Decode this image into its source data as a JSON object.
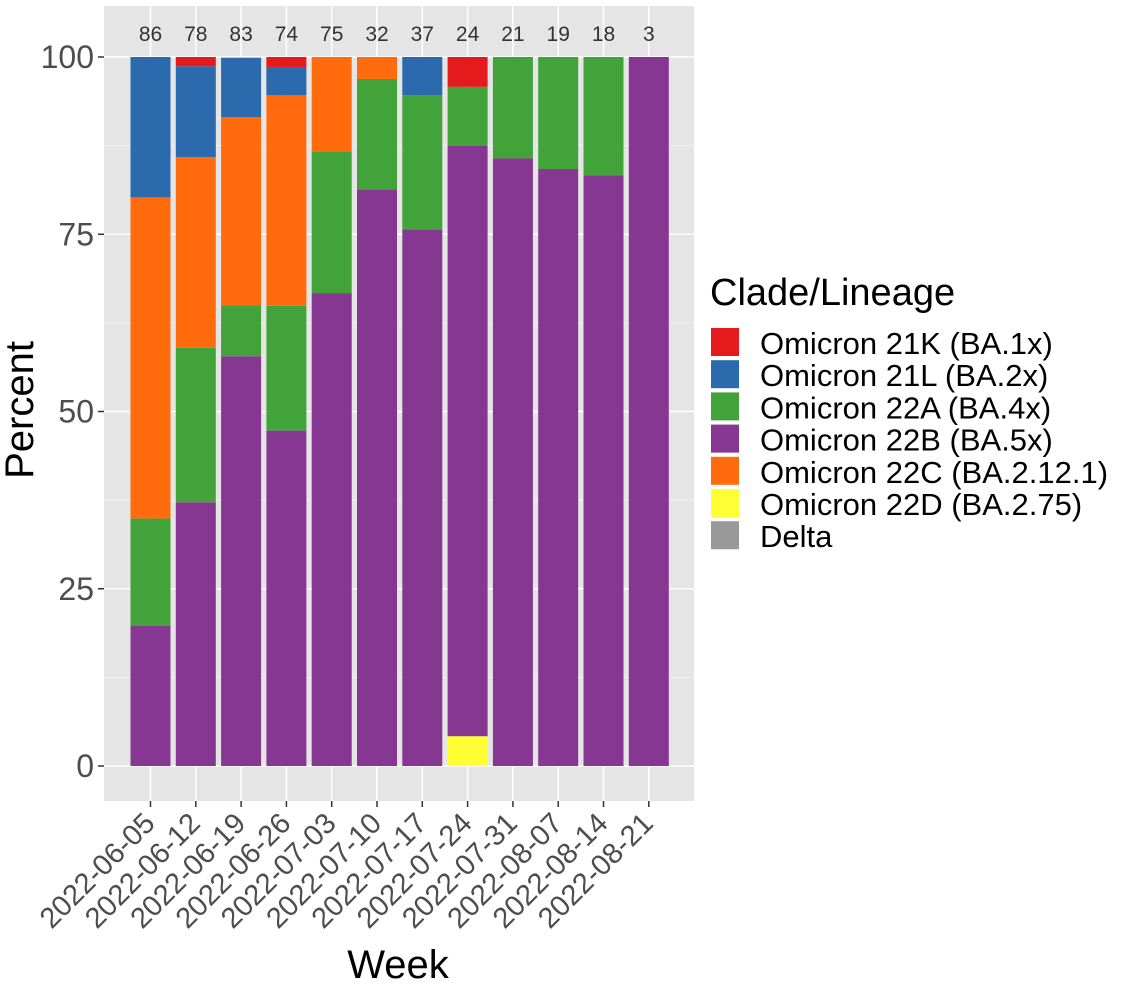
{
  "chart_data": {
    "type": "bar",
    "stacked": true,
    "xlabel": "Week",
    "ylabel": "Percent",
    "ylim": [
      0,
      100
    ],
    "yticks": [
      0,
      25,
      50,
      75,
      100
    ],
    "grid": true,
    "legend_position": "right",
    "legend_title": "Clade/Lineage",
    "categories": [
      "2022-06-05",
      "2022-06-12",
      "2022-06-19",
      "2022-06-26",
      "2022-07-03",
      "2022-07-10",
      "2022-07-17",
      "2022-07-24",
      "2022-07-31",
      "2022-08-07",
      "2022-08-14",
      "2022-08-21"
    ],
    "counts": [
      "86",
      "78",
      "83",
      "74",
      "75",
      "32",
      "37",
      "24",
      "21",
      "19",
      "18",
      "3"
    ],
    "stack_order": [
      "Omicron 22D (BA.2.75)",
      "Omicron 22B (BA.5x)",
      "Omicron 22A (BA.4x)",
      "Omicron 22C (BA.2.12.1)",
      "Omicron 21L (BA.2x)",
      "Omicron 21K (BA.1x)",
      "Delta"
    ],
    "series": [
      {
        "name": "Omicron 21K (BA.1x)",
        "color": "#E41A1C",
        "values": [
          0,
          1.3,
          0,
          1.4,
          0,
          0,
          0,
          4.2,
          0,
          0,
          0,
          0
        ]
      },
      {
        "name": "Omicron 21L (BA.2x)",
        "color": "#2B6AAD",
        "values": [
          19.8,
          12.8,
          8.4,
          4.0,
          0,
          0,
          5.4,
          0,
          0,
          0,
          0,
          0
        ]
      },
      {
        "name": "Omicron 22A (BA.4x)",
        "color": "#41A33A",
        "values": [
          15.1,
          21.8,
          7.2,
          17.6,
          20.0,
          15.6,
          18.9,
          8.3,
          14.3,
          15.8,
          16.7,
          0
        ]
      },
      {
        "name": "Omicron 22B (BA.5x)",
        "color": "#853792",
        "values": [
          19.8,
          37.2,
          57.8,
          47.3,
          66.7,
          81.3,
          75.7,
          83.3,
          85.7,
          84.2,
          83.3,
          100
        ]
      },
      {
        "name": "Omicron 22C (BA.2.12.1)",
        "color": "#FF6B0D",
        "values": [
          45.3,
          26.9,
          26.5,
          29.7,
          13.3,
          3.1,
          0,
          0,
          0,
          0,
          0,
          0
        ]
      },
      {
        "name": "Omicron 22D (BA.2.75)",
        "color": "#FFFF33",
        "values": [
          0,
          0,
          0,
          0,
          0,
          0,
          0,
          4.2,
          0,
          0,
          0,
          0
        ]
      },
      {
        "name": "Delta",
        "color": "#999999",
        "values": [
          0,
          0,
          0,
          0,
          0,
          0,
          0,
          0,
          0,
          0,
          0,
          0
        ]
      }
    ],
    "panel_background": "#E5E5E5",
    "grid_color": "#FFFFFF"
  }
}
